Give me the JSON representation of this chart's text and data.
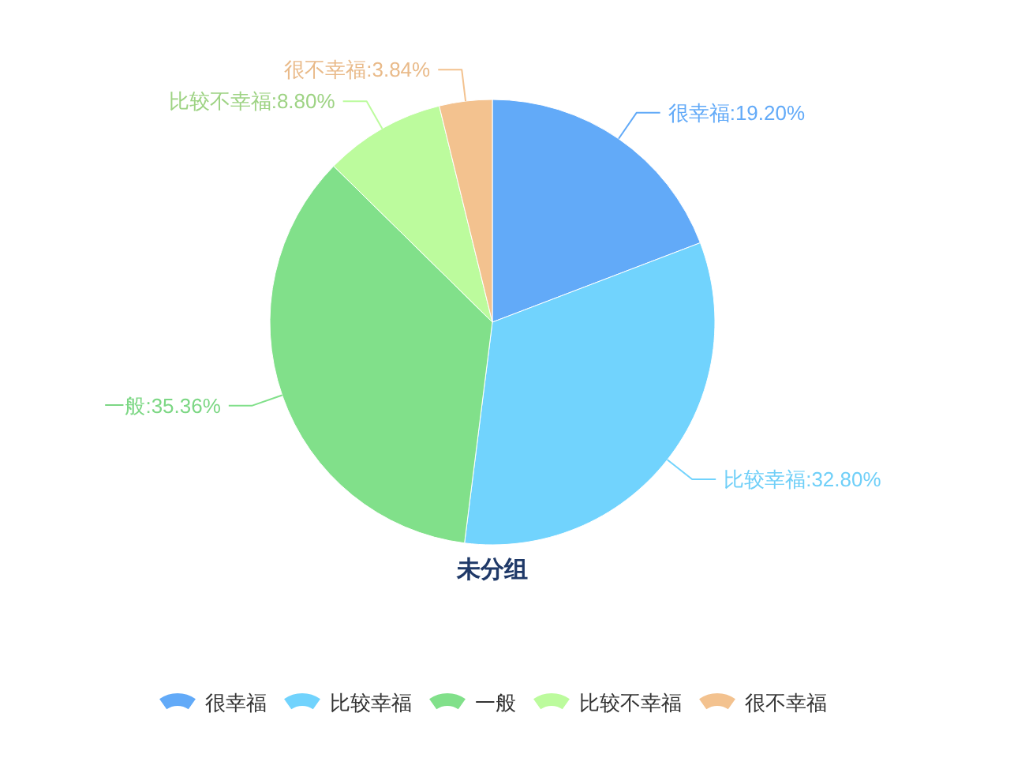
{
  "chart_data": {
    "type": "pie",
    "title": "未分组",
    "categories": [
      "很幸福",
      "比较幸福",
      "一般",
      "比较不幸福",
      "很不幸福"
    ],
    "values": [
      19.2,
      32.8,
      35.36,
      8.8,
      3.84
    ],
    "colors": [
      "#62aaf8",
      "#71d3fd",
      "#81e08a",
      "#bcfb9d",
      "#f3c28f"
    ],
    "value_labels": [
      "很幸福:19.20%",
      "比较幸福:32.80%",
      "一般:35.36%",
      "比较不幸福:8.80%",
      "很不幸福:3.84%"
    ],
    "legend": "bottom"
  }
}
